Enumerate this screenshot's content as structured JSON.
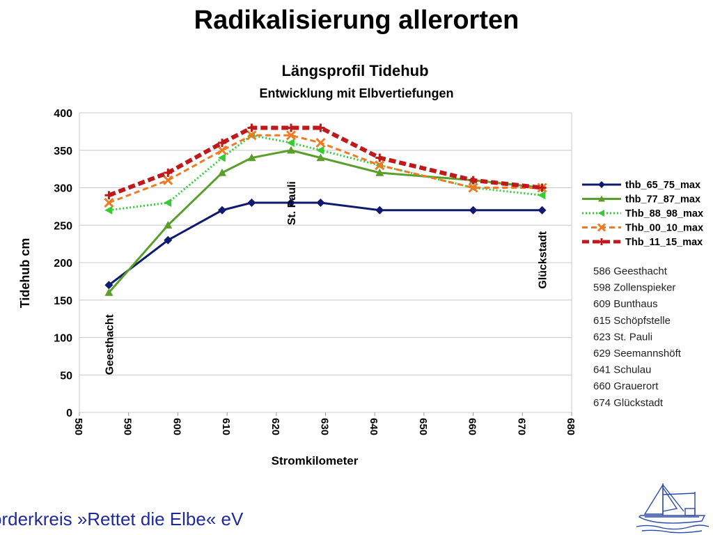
{
  "slide": {
    "title": "Radikalisierung allerorten",
    "footer": "örderkreis »Rettet die Elbe« eV"
  },
  "colors": {
    "footer_text": "#1f2a9a",
    "gridline": "#c8c8c8",
    "axis_text": "#000000"
  },
  "logo": {
    "icon": "fishing-boat-icon"
  },
  "chart_data": {
    "type": "line",
    "title": "Längsprofil Tidehub",
    "subtitle": "Entwicklung mit Elbvertiefungen",
    "xlabel": "Stromkilometer",
    "ylabel": "Tidehub cm",
    "xlim": [
      580,
      680
    ],
    "ylim": [
      0,
      400
    ],
    "x_ticks": [
      580,
      590,
      600,
      610,
      620,
      630,
      640,
      650,
      660,
      670,
      680
    ],
    "y_ticks": [
      0,
      50,
      100,
      150,
      200,
      250,
      300,
      350,
      400
    ],
    "grid": "horizontal",
    "legend_position": "right",
    "x": [
      586,
      598,
      609,
      615,
      623,
      629,
      641,
      660,
      674
    ],
    "series": [
      {
        "name": "thb_65_75_max",
        "color": "#0d1a6e",
        "style": "solid",
        "marker": "diamond",
        "values": [
          170,
          230,
          270,
          280,
          280,
          280,
          270,
          270,
          270
        ]
      },
      {
        "name": "thb_77_87_max",
        "color": "#5a9e2c",
        "style": "solid",
        "marker": "triangle",
        "values": [
          160,
          250,
          320,
          340,
          350,
          340,
          320,
          310,
          300
        ]
      },
      {
        "name": "Thb_88_98_max",
        "color": "#33cc33",
        "style": "dotted",
        "marker": "triangle-left",
        "values": [
          270,
          280,
          340,
          370,
          360,
          350,
          330,
          300,
          290
        ]
      },
      {
        "name": "Thb_00_10_max",
        "color": "#f07a22",
        "style": "dashed",
        "marker": "x",
        "values": [
          280,
          310,
          350,
          370,
          370,
          360,
          330,
          300,
          300
        ]
      },
      {
        "name": "Thb_11_15_max",
        "color": "#c0191c",
        "style": "dashed-thick",
        "marker": "plus",
        "values": [
          290,
          320,
          360,
          380,
          380,
          380,
          340,
          310,
          300
        ]
      }
    ],
    "annotations": [
      {
        "text": "Geesthacht",
        "x": 586,
        "y": 50
      },
      {
        "text": "St. Pauli",
        "x": 623,
        "y": 250
      },
      {
        "text": "Glückstadt",
        "x": 674,
        "y": 165
      }
    ],
    "station_list": [
      "586 Geesthacht",
      "598 Zollenspieker",
      "609 Bunthaus",
      "615 Schöpfstelle",
      "623 St. Pauli",
      "629 Seemannshöft",
      "641 Schulau",
      "660 Grauerort",
      "674 Glückstadt"
    ]
  }
}
